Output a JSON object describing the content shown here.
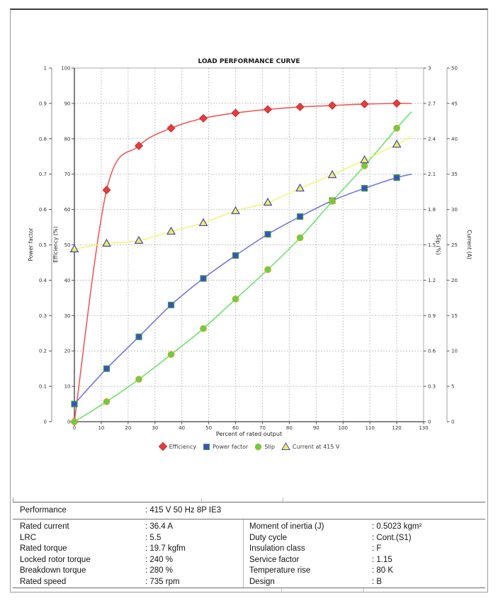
{
  "chart_data": {
    "type": "line",
    "title": "LOAD PERFORMANCE CURVE",
    "axes": {
      "x": {
        "label": "Percent of rated output",
        "min": 0,
        "max": 130,
        "step": 10
      },
      "left_outer": {
        "label": "Power factor",
        "min": 0,
        "max": 1,
        "step": 0.1
      },
      "left_inner": {
        "label": "Efficiency (%)",
        "min": 0,
        "max": 100,
        "step": 10
      },
      "right_inner": {
        "label": "Slip (%)",
        "min": 0,
        "max": 3,
        "step": 0.3
      },
      "right_outer": {
        "label": "Current (A)",
        "min": 0,
        "max": 50,
        "step": 5
      }
    },
    "grid": true,
    "legend_position": "bottom",
    "x": [
      0,
      12,
      24,
      36,
      48,
      60,
      72,
      84,
      96,
      108,
      120
    ],
    "series": [
      {
        "name": "Efficiency",
        "axis": "left_inner",
        "marker": "diamond",
        "line_color": "#ee5b5b",
        "fill": "#e73c3c",
        "stroke": "#c62b2b",
        "values": [
          0,
          65.5,
          78,
          83,
          85.8,
          87.3,
          88.3,
          89,
          89.4,
          89.8,
          90
        ],
        "ext_x": 125.5,
        "ext_value": 90
      },
      {
        "name": "Power factor",
        "axis": "left_outer",
        "marker": "square",
        "line_color": "#7276dd",
        "fill": "#3b50c2",
        "stroke": "#3f9e44",
        "values": [
          0.05,
          0.15,
          0.24,
          0.33,
          0.405,
          0.47,
          0.53,
          0.58,
          0.625,
          0.66,
          0.69
        ],
        "ext_x": 125.5,
        "ext_value": 0.7
      },
      {
        "name": "Slip",
        "axis": "right_inner",
        "marker": "circle",
        "line_color": "#6ee26e",
        "fill": "#52d947",
        "stroke": "#dda22e",
        "values": [
          0,
          0.17,
          0.36,
          0.57,
          0.79,
          1.04,
          1.29,
          1.56,
          1.87,
          2.17,
          2.49
        ],
        "ext_x": 125.5,
        "ext_value": 2.63
      },
      {
        "name": "Current at 415 V",
        "axis": "right_outer",
        "marker": "triangle",
        "line_color": "#f4f47c",
        "fill": "#f2ee55",
        "stroke": "#4747c4",
        "values": [
          24.4,
          25.2,
          25.6,
          26.9,
          28.1,
          29.8,
          31.0,
          33.0,
          34.9,
          37.0,
          39.2
        ],
        "ext_x": 125.5,
        "ext_value": 40.3
      }
    ]
  },
  "table": {
    "header": {
      "label": "Performance",
      "value": ": 415 V 50 Hz 8P IE3"
    },
    "left": [
      {
        "label": "Rated current",
        "value": ": 36.4 A"
      },
      {
        "label": "LRC",
        "value": ": 5.5"
      },
      {
        "label": "Rated torque",
        "value": ": 19.7 kgfm"
      },
      {
        "label": "Locked rotor torque",
        "value": ": 240 %"
      },
      {
        "label": "Breakdown torque",
        "value": ": 280 %"
      },
      {
        "label": "Rated speed",
        "value": ": 735 rpm"
      }
    ],
    "right": [
      {
        "label": "Moment of inertia (J)",
        "value": ": 0.5023 kgm²"
      },
      {
        "label": "Duty cycle",
        "value": ": Cont.(S1)"
      },
      {
        "label": "Insulation class",
        "value": ": F"
      },
      {
        "label": "Service factor",
        "value": ": 1.15"
      },
      {
        "label": "Temperature rise",
        "value": ": 80 K"
      },
      {
        "label": "Design",
        "value": ": B"
      }
    ]
  }
}
